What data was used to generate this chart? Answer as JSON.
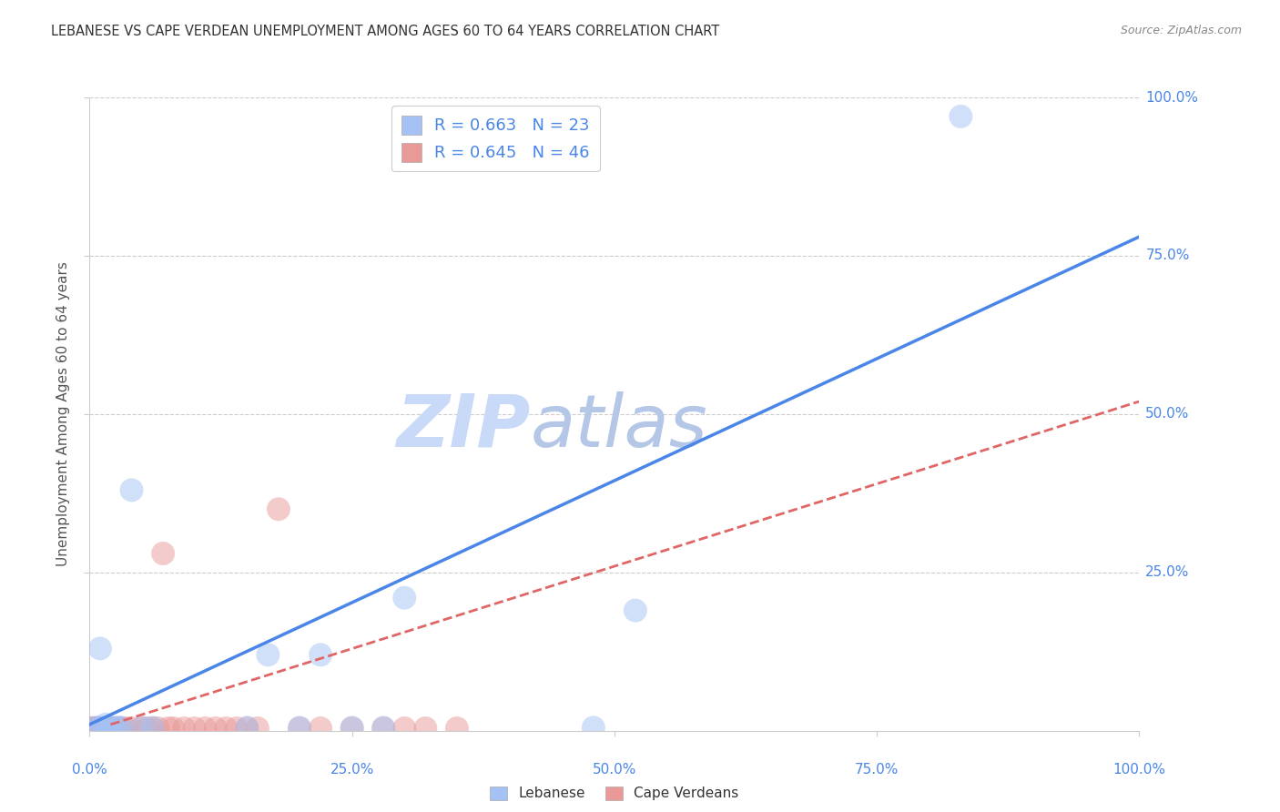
{
  "title": "LEBANESE VS CAPE VERDEAN UNEMPLOYMENT AMONG AGES 60 TO 64 YEARS CORRELATION CHART",
  "source": "Source: ZipAtlas.com",
  "ylabel": "Unemployment Among Ages 60 to 64 years",
  "blue_R": 0.663,
  "blue_N": 23,
  "pink_R": 0.645,
  "pink_N": 46,
  "blue_color": "#a4c2f4",
  "pink_color": "#ea9999",
  "blue_line_color": "#4a86e8",
  "pink_line_color": "#e06666",
  "watermark_zip_color": "#c9daf8",
  "watermark_atlas_color": "#b4c7e7",
  "legend_label_blue": "Lebanese",
  "legend_label_pink": "Cape Verdeans",
  "blue_points_x": [
    0.005,
    0.008,
    0.01,
    0.012,
    0.015,
    0.018,
    0.02,
    0.025,
    0.028,
    0.03,
    0.04,
    0.05,
    0.06,
    0.15,
    0.17,
    0.2,
    0.22,
    0.25,
    0.28,
    0.3,
    0.48,
    0.52,
    0.83
  ],
  "blue_points_y": [
    0.005,
    0.005,
    0.13,
    0.005,
    0.01,
    0.005,
    0.005,
    0.005,
    0.005,
    0.005,
    0.38,
    0.005,
    0.005,
    0.005,
    0.12,
    0.005,
    0.12,
    0.005,
    0.005,
    0.21,
    0.005,
    0.19,
    0.97
  ],
  "pink_points_x": [
    0.002,
    0.003,
    0.004,
    0.005,
    0.006,
    0.007,
    0.008,
    0.009,
    0.01,
    0.011,
    0.012,
    0.013,
    0.014,
    0.015,
    0.016,
    0.018,
    0.02,
    0.022,
    0.025,
    0.028,
    0.03,
    0.035,
    0.04,
    0.05,
    0.055,
    0.06,
    0.065,
    0.07,
    0.075,
    0.08,
    0.09,
    0.1,
    0.11,
    0.12,
    0.13,
    0.14,
    0.15,
    0.16,
    0.18,
    0.2,
    0.22,
    0.25,
    0.28,
    0.3,
    0.32,
    0.35
  ],
  "pink_points_y": [
    0.004,
    0.004,
    0.004,
    0.004,
    0.004,
    0.004,
    0.004,
    0.004,
    0.004,
    0.004,
    0.004,
    0.004,
    0.004,
    0.004,
    0.004,
    0.004,
    0.004,
    0.004,
    0.004,
    0.004,
    0.004,
    0.004,
    0.004,
    0.004,
    0.004,
    0.004,
    0.004,
    0.28,
    0.004,
    0.004,
    0.004,
    0.004,
    0.004,
    0.004,
    0.004,
    0.004,
    0.004,
    0.004,
    0.35,
    0.004,
    0.004,
    0.004,
    0.004,
    0.004,
    0.004,
    0.004
  ],
  "blue_trendline_x": [
    0.0,
    1.0
  ],
  "blue_trendline_y": [
    0.01,
    0.78
  ],
  "pink_trendline_x": [
    0.02,
    1.0
  ],
  "pink_trendline_y": [
    0.01,
    0.52
  ],
  "background_color": "#ffffff",
  "grid_color": "#cccccc",
  "tick_label_color": "#4a86e8",
  "axis_label_color": "#555555",
  "title_color": "#333333",
  "source_color": "#888888",
  "xlim": [
    0,
    1
  ],
  "ylim": [
    0,
    1
  ],
  "ytick_positions": [
    0.25,
    0.5,
    0.75,
    1.0
  ],
  "ytick_labels": [
    "25.0%",
    "50.0%",
    "75.0%",
    "100.0%"
  ],
  "xtick_positions": [
    0.0,
    0.25,
    0.5,
    0.75,
    1.0
  ],
  "xtick_labels": [
    "0.0%",
    "25.0%",
    "50.0%",
    "75.0%",
    "100.0%"
  ]
}
